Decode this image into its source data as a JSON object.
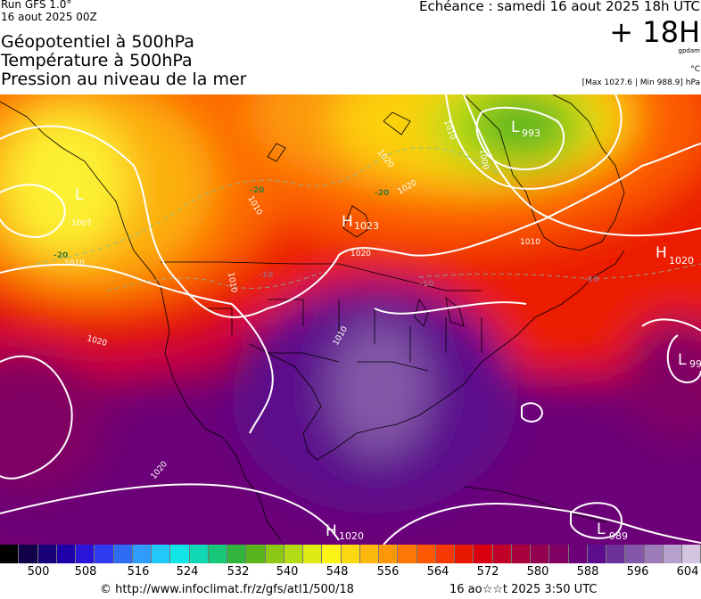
{
  "header": {
    "run": "Run GFS 1.0°",
    "run_date": "16 aout 2025 00Z",
    "echeance": "Echéance : samedi 16 aout 2025 18h UTC",
    "lead": "+ 18H",
    "unit_gpdam": "gpdam",
    "unit_temp": "°C",
    "max_min": "[Max 1027.6 | Min 988.9] hPa"
  },
  "titles": [
    "Géopotentiel à 500hPa",
    "Température à 500hPa",
    "Pression au niveau de la mer"
  ],
  "map": {
    "pressure_centers": [
      {
        "symbol": "L",
        "value": "993"
      },
      {
        "symbol": "L",
        "value": "1007"
      },
      {
        "symbol": "H",
        "value": "1023"
      },
      {
        "symbol": "H",
        "value": "1020"
      },
      {
        "symbol": "L",
        "value": "99"
      },
      {
        "symbol": "H",
        "value": "1020"
      },
      {
        "symbol": "L",
        "value": "989"
      }
    ],
    "isobar_labels": [
      "1010",
      "1000",
      "1020",
      "1010",
      "1010",
      "1010",
      "1020",
      "1010",
      "1020",
      "1020",
      "1010",
      "1020"
    ],
    "isotherm_labels": [
      "-20",
      "-20",
      "-20",
      "-10",
      "-10",
      "-10"
    ]
  },
  "scale": {
    "labels": [
      "500",
      "508",
      "516",
      "524",
      "532",
      "540",
      "548",
      "556",
      "564",
      "572",
      "580",
      "588",
      "596",
      "604"
    ],
    "colors": [
      "#000000",
      "#12004a",
      "#1a0078",
      "#1f00a8",
      "#2a14d8",
      "#2e3cf0",
      "#2e6cf4",
      "#2e9cf8",
      "#22c8f8",
      "#10e4e4",
      "#10d8b4",
      "#18c878",
      "#30b43c",
      "#5ab41c",
      "#8cc814",
      "#b4dc14",
      "#dcec14",
      "#fcf414",
      "#fcd810",
      "#fcb80c",
      "#fc9808",
      "#fc7804",
      "#fc5800",
      "#f43800",
      "#e81800",
      "#d80010",
      "#c00028",
      "#a8003c",
      "#940050",
      "#800064",
      "#6c0078",
      "#5c0c8c",
      "#6c3098",
      "#8458a8",
      "#9c7cb8",
      "#b8a0cc",
      "#d4c4e0"
    ]
  },
  "footer": {
    "url": "© http://www.infoclimat.fr/z/gfs/atl1/500/18",
    "time": "16 ao☆☆t 2025  3:50 UTC"
  }
}
